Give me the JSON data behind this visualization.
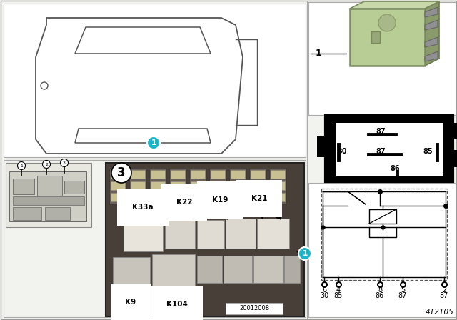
{
  "bg": "#f2f2ee",
  "white": "#ffffff",
  "black": "#000000",
  "cyan": "#1ab5c8",
  "green_relay": "#b8cc96",
  "gray": "#aaaaaa",
  "dark_gray": "#444444",
  "fuse_bg": "#5a5248",
  "diagram_id": "412105",
  "stamp": "20012008",
  "pin_labels_top": [
    "6",
    "4",
    "8",
    "5",
    "2"
  ],
  "pin_labels_bot": [
    "30",
    "85",
    "86",
    "87",
    "87"
  ],
  "fuse_labels": [
    "K33a",
    "K22",
    "K19",
    "K21",
    "K9",
    "K104"
  ]
}
